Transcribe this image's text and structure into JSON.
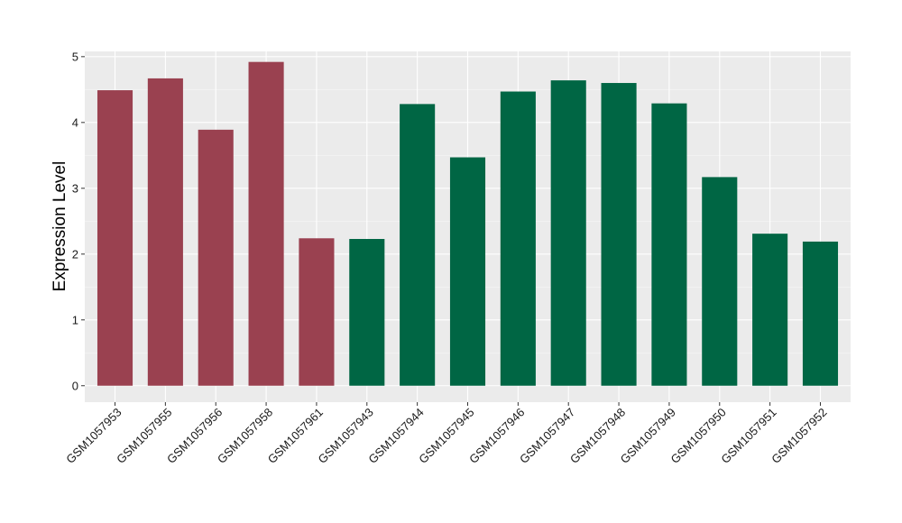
{
  "chart_data": {
    "type": "bar",
    "title": "",
    "xlabel": "",
    "ylabel": "Expression Level",
    "ylim": [
      -0.25,
      5.08
    ],
    "yticks": [
      0,
      1,
      2,
      3,
      4,
      5
    ],
    "grid": true,
    "panel_background": "#ebebeb",
    "categories": [
      "GSM1057953",
      "GSM1057955",
      "GSM1057956",
      "GSM1057958",
      "GSM1057961",
      "GSM1057943",
      "GSM1057944",
      "GSM1057945",
      "GSM1057946",
      "GSM1057947",
      "GSM1057948",
      "GSM1057949",
      "GSM1057950",
      "GSM1057951",
      "GSM1057952"
    ],
    "values": [
      4.49,
      4.67,
      3.89,
      4.92,
      2.24,
      2.23,
      4.28,
      3.47,
      4.47,
      4.64,
      4.6,
      4.29,
      3.17,
      2.31,
      2.19
    ],
    "colors": [
      "#9a4150",
      "#9a4150",
      "#9a4150",
      "#9a4150",
      "#9a4150",
      "#006644",
      "#006644",
      "#006644",
      "#006644",
      "#006644",
      "#006644",
      "#006644",
      "#006644",
      "#006644",
      "#006644"
    ]
  }
}
